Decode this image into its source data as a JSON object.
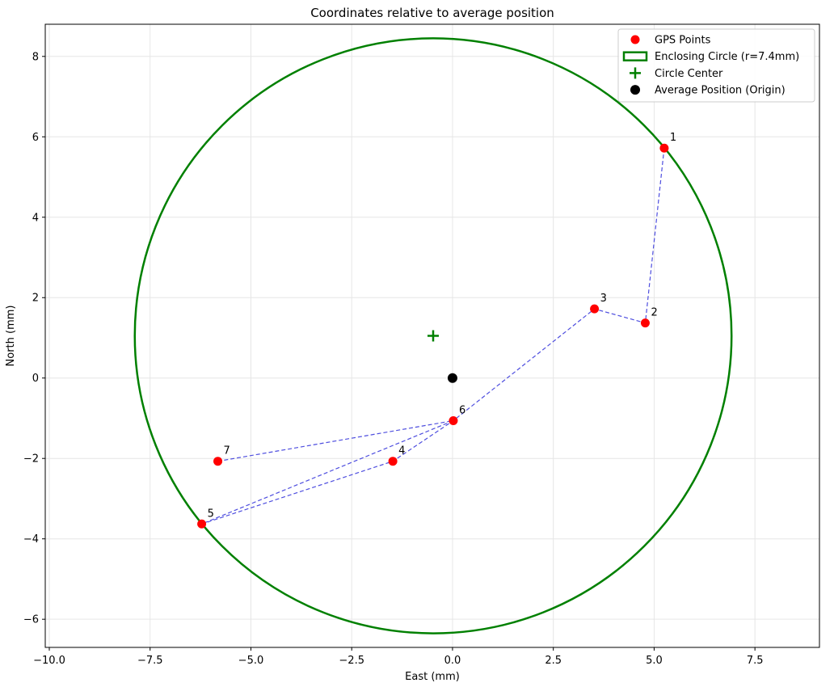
{
  "chart_data": {
    "type": "scatter",
    "title": "Coordinates relative to average position",
    "xlabel": "East (mm)",
    "ylabel": "North (mm)",
    "xlim": [
      -10.1,
      9.1
    ],
    "ylim": [
      -6.7,
      8.8
    ],
    "xticks": [
      -10.0,
      -7.5,
      -5.0,
      -2.5,
      0.0,
      2.5,
      5.0,
      7.5
    ],
    "xtick_labels": [
      "−10.0",
      "−7.5",
      "−5.0",
      "−2.5",
      "0.0",
      "2.5",
      "5.0",
      "7.5"
    ],
    "yticks": [
      -6,
      -4,
      -2,
      0,
      2,
      4,
      6,
      8
    ],
    "ytick_labels": [
      "−6",
      "−4",
      "−2",
      "0",
      "2",
      "4",
      "6",
      "8"
    ],
    "grid": true,
    "legend_position": "top-right",
    "points": [
      {
        "label": "1",
        "x": 5.25,
        "y": 5.72
      },
      {
        "label": "2",
        "x": 4.78,
        "y": 1.37
      },
      {
        "label": "3",
        "x": 3.52,
        "y": 1.72
      },
      {
        "label": "4",
        "x": -1.48,
        "y": -2.07
      },
      {
        "label": "5",
        "x": -6.22,
        "y": -3.63
      },
      {
        "label": "6",
        "x": 0.02,
        "y": -1.06
      },
      {
        "label": "7",
        "x": -5.82,
        "y": -2.07
      }
    ],
    "path_order": [
      "1",
      "2",
      "3",
      "6",
      "4",
      "5",
      "6",
      "7"
    ],
    "circle": {
      "cx": -0.48,
      "cy": 1.05,
      "r": 7.4
    },
    "average_position": {
      "x": 0.0,
      "y": 0.0
    },
    "colors": {
      "points": "#ff0000",
      "path": "#3b3bdb",
      "circle": "#008000",
      "center": "#008000",
      "origin": "#000000",
      "grid": "#e6e6e6"
    },
    "legend": [
      {
        "key": "gps",
        "label": "GPS Points"
      },
      {
        "key": "circle",
        "label": "Enclosing Circle (r=7.4mm)"
      },
      {
        "key": "center",
        "label": "Circle Center"
      },
      {
        "key": "origin",
        "label": "Average Position (Origin)"
      }
    ]
  }
}
